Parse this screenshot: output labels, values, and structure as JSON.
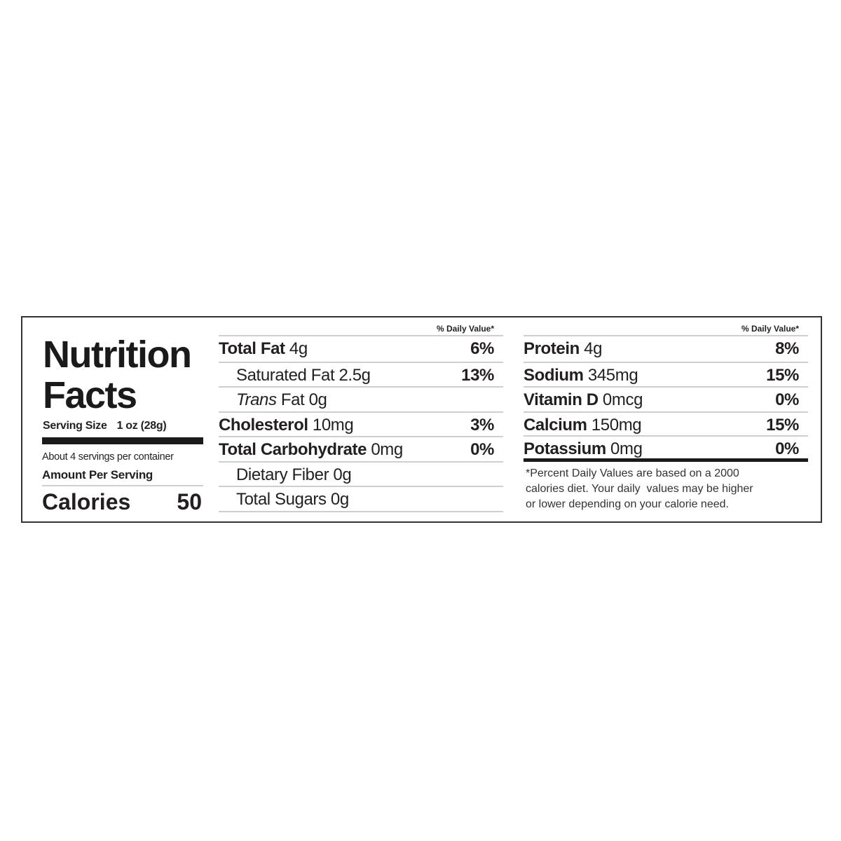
{
  "header": {
    "title_line1": "Nutrition",
    "title_line2": "Facts"
  },
  "serving": {
    "label": "Serving Size",
    "size": "1 oz (28g)",
    "servings_per_container": "About 4 servings per container",
    "amount_per_serving": "Amount Per Serving",
    "calories_label": "Calories",
    "calories_value": "50"
  },
  "middle": {
    "dv_header": "% Daily Value*",
    "rows": [
      {
        "bold": "Total Fat",
        "italic": "",
        "rest": " 4g",
        "pct": "6%"
      },
      {
        "bold": "",
        "italic": "",
        "rest": "Saturated Fat 2.5g",
        "pct": "13%"
      },
      {
        "bold": "",
        "italic": "Trans",
        "rest": " Fat 0g",
        "pct": ""
      },
      {
        "bold": "Cholesterol",
        "italic": "",
        "rest": " 10mg",
        "pct": "3%"
      },
      {
        "bold": "Total Carbohydrate",
        "italic": "",
        "rest": " 0mg",
        "pct": "0%"
      },
      {
        "bold": "",
        "italic": "",
        "rest": "Dietary Fiber 0g",
        "pct": ""
      },
      {
        "bold": "",
        "italic": "",
        "rest": "Total Sugars 0g",
        "pct": ""
      }
    ]
  },
  "right": {
    "dv_header": "% Daily Value*",
    "rows": [
      {
        "bold": "Protein",
        "rest": " 4g",
        "pct": "8%"
      },
      {
        "bold": "Sodium",
        "rest": " 345mg",
        "pct": "15%"
      },
      {
        "bold": "Vitamin D",
        "rest": " 0mcg",
        "pct": "0%"
      },
      {
        "bold": "Calcium",
        "rest": " 150mg",
        "pct": "15%"
      },
      {
        "bold": "Potassium",
        "rest": " 0mg",
        "pct": "0%"
      }
    ],
    "footnote_lines": [
      "*Percent Daily Values are based on a 2000",
      "calories diet. Your daily  values may be higher",
      "or lower depending on your calorie need."
    ]
  }
}
